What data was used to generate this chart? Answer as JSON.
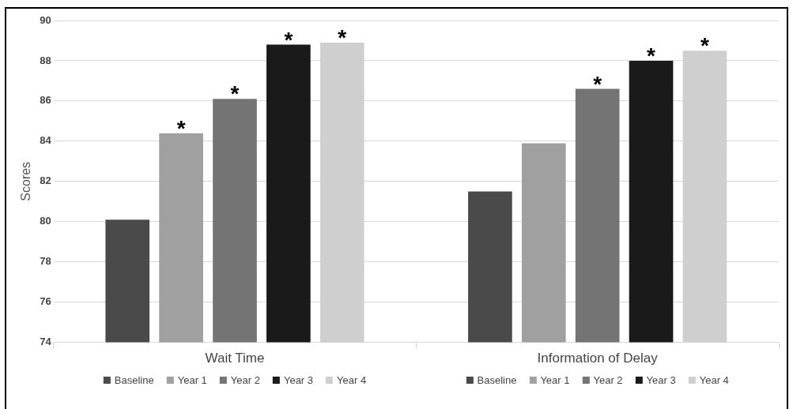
{
  "chart_data": {
    "type": "bar",
    "ylabel": "Scores",
    "categories": [
      "Wait Time",
      "Information of Delay"
    ],
    "series": [
      {
        "name": "Baseline",
        "color": "#4a4a4a",
        "values": [
          80.1,
          81.5
        ]
      },
      {
        "name": "Year 1",
        "color": "#a0a0a0",
        "values": [
          84.4,
          83.9
        ],
        "value_labels": [
          "*",
          null
        ]
      },
      {
        "name": "Year 2",
        "color": "#747474",
        "values": [
          86.1,
          86.6
        ],
        "value_labels": [
          "*",
          "*"
        ]
      },
      {
        "name": "Year 3",
        "color": "#1a1a1a",
        "values": [
          88.8,
          88.0
        ],
        "value_labels": [
          "*",
          "*"
        ]
      },
      {
        "name": "Year 4",
        "color": "#cfcfcf",
        "values": [
          88.9,
          88.5
        ],
        "value_labels": [
          "*",
          "*"
        ]
      }
    ],
    "ylim": [
      74,
      90
    ],
    "yticks": [
      74,
      76,
      78,
      80,
      82,
      84,
      86,
      88,
      90
    ],
    "grid": "y",
    "legend": "bottom"
  }
}
